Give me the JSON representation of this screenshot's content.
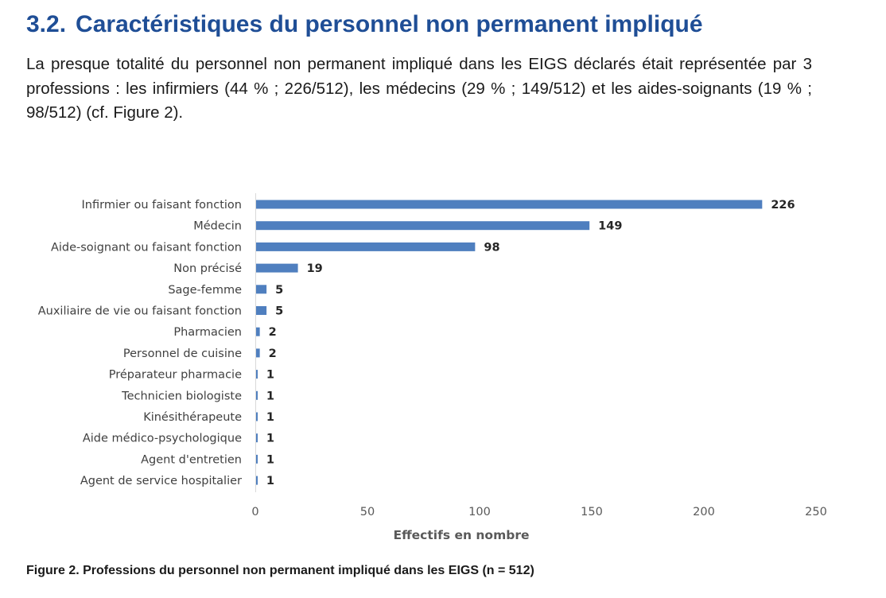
{
  "section": {
    "number": "3.2.",
    "title": "Caractéristiques du personnel non permanent impliqué"
  },
  "paragraph": "La presque totalité du personnel non permanent impliqué dans les EIGS déclarés était représentée par 3 professions : les infirmiers (44 % ; 226/512), les médecins (29 % ; 149/512) et les aides-soignants (19 % ; 98/512) (cf. Figure 2).",
  "chart_data": {
    "type": "bar",
    "orientation": "horizontal",
    "categories": [
      "Infirmier ou faisant fonction",
      "Médecin",
      "Aide-soignant ou faisant fonction",
      "Non précisé",
      "Sage-femme",
      "Auxiliaire de vie ou faisant fonction",
      "Pharmacien",
      "Personnel de cuisine",
      "Préparateur pharmacie",
      "Technicien biologiste",
      "Kinésithérapeute",
      "Aide médico-psychologique",
      "Agent d'entretien",
      "Agent de service hospitalier"
    ],
    "values": [
      226,
      149,
      98,
      19,
      5,
      5,
      2,
      2,
      1,
      1,
      1,
      1,
      1,
      1
    ],
    "xlabel": "Effectifs en nombre",
    "ylabel": "",
    "xlim": [
      0,
      250
    ],
    "xticks": [
      0,
      50,
      100,
      150,
      200,
      250
    ],
    "grid": false,
    "data_labels": true,
    "bar_color": "#4f7fbf"
  },
  "caption": "Figure 2. Professions du personnel non permanent impliqué dans les EIGS (n = 512)"
}
